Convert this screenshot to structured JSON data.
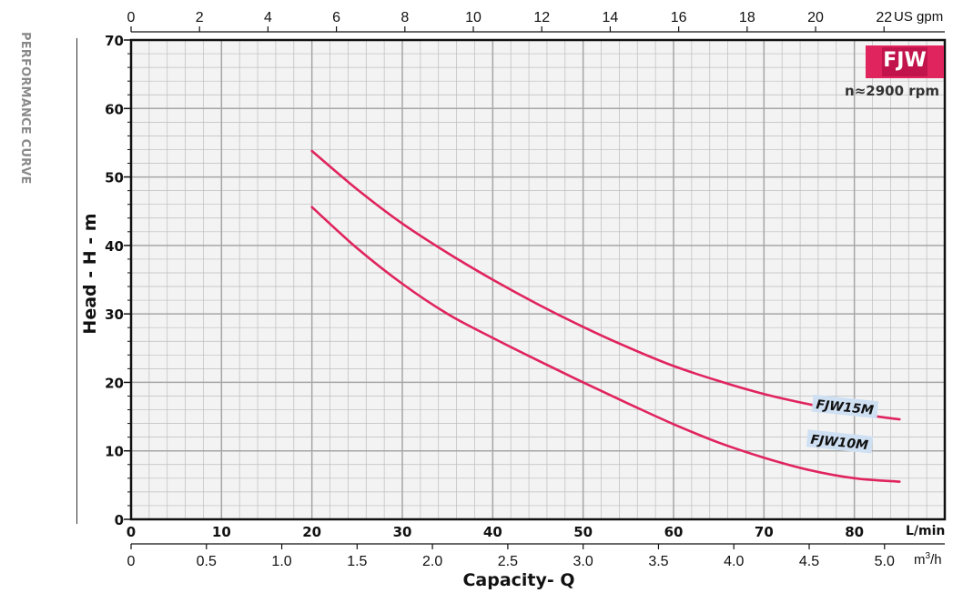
{
  "side_title": "PERFORMANCE CURVE",
  "badge": "FJW",
  "rpm_label": "n≈2900 rpm",
  "chart_data": {
    "type": "line",
    "title": "",
    "xlabel": "Capacity- Q",
    "ylabel": "Head - H - m",
    "x_unit_primary": "L/min",
    "x_unit_secondary": "m³/h",
    "x_unit_top": "US gpm",
    "xlim": [
      0,
      90
    ],
    "ylim": [
      0,
      70
    ],
    "grid": true,
    "x_ticks_lmin": [
      "0",
      "10",
      "20",
      "30",
      "40",
      "50",
      "60",
      "70",
      "80"
    ],
    "x_ticks_m3h": [
      "0",
      "0.5",
      "1.0",
      "1.5",
      "2.0",
      "2.5",
      "3.0",
      "3.5",
      "4.0",
      "4.5",
      "5.0"
    ],
    "x_ticks_gpm": [
      "0",
      "2",
      "4",
      "6",
      "8",
      "10",
      "12",
      "14",
      "16",
      "18",
      "20",
      "22"
    ],
    "y_ticks": [
      "0",
      "10",
      "20",
      "30",
      "40",
      "50",
      "60",
      "70"
    ],
    "series": [
      {
        "name": "FJW15M",
        "color": "#e0245e",
        "x": [
          20,
          25,
          30,
          35,
          40,
          45,
          50,
          55,
          60,
          65,
          70,
          75,
          80,
          85
        ],
        "y": [
          53.8,
          48.2,
          43.2,
          38.9,
          35.0,
          31.4,
          28.1,
          25.1,
          22.4,
          20.2,
          18.3,
          16.8,
          15.5,
          14.6
        ]
      },
      {
        "name": "FJW10M",
        "color": "#e0245e",
        "x": [
          20,
          25,
          30,
          35,
          40,
          45,
          50,
          55,
          60,
          65,
          70,
          75,
          80,
          85
        ],
        "y": [
          45.6,
          39.6,
          34.4,
          30.0,
          26.5,
          23.2,
          20.0,
          16.9,
          13.9,
          11.2,
          9.0,
          7.2,
          6.0,
          5.5
        ]
      }
    ]
  }
}
